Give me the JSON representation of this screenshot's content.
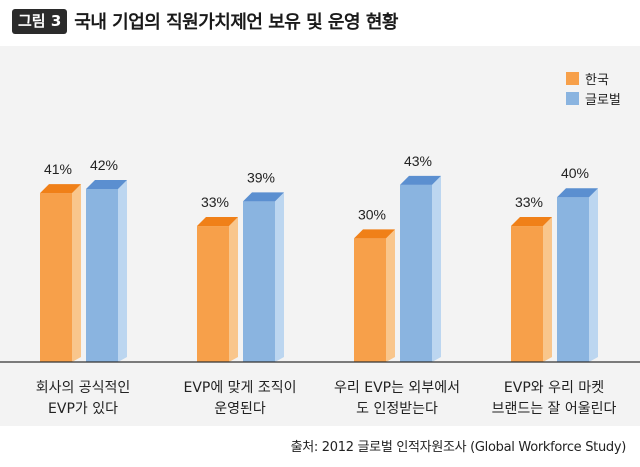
{
  "figure": {
    "tag": "그림 3",
    "title": "국내 기업의 직원가치제언 보유 및 운영 현황",
    "source": "출처: 2012 글로벌 인적자원조사 (Global Workforce Study)"
  },
  "colors": {
    "korea_front": "#f7a04a",
    "korea_top": "#f08018",
    "korea_side": "#f9c68c",
    "global_front": "#8ab4e0",
    "global_top": "#5b8fd0",
    "global_side": "#bcd6f0",
    "plot_bg": "#f3f3f3",
    "axis": "#333333"
  },
  "chart_data": {
    "type": "bar",
    "title": "국내 기업의 직원가치제언 보유 및 운영 현황",
    "unit": "%",
    "categories": [
      [
        "회사의 공식적인",
        "EVP가 있다"
      ],
      [
        "EVP에 맞게 조직이",
        "운영된다"
      ],
      [
        "우리 EVP는 외부에서",
        "도 인정받는다"
      ],
      [
        "EVP와 우리 마켓",
        "브랜드는 잘 어울린다"
      ]
    ],
    "series": [
      {
        "name": "한국",
        "values": [
          41,
          33,
          30,
          33
        ]
      },
      {
        "name": "글로벌",
        "values": [
          42,
          39,
          43,
          40
        ]
      }
    ],
    "ylim": [
      0,
      50
    ],
    "grid": false,
    "legend_position": "top-right",
    "data_labels": true
  }
}
